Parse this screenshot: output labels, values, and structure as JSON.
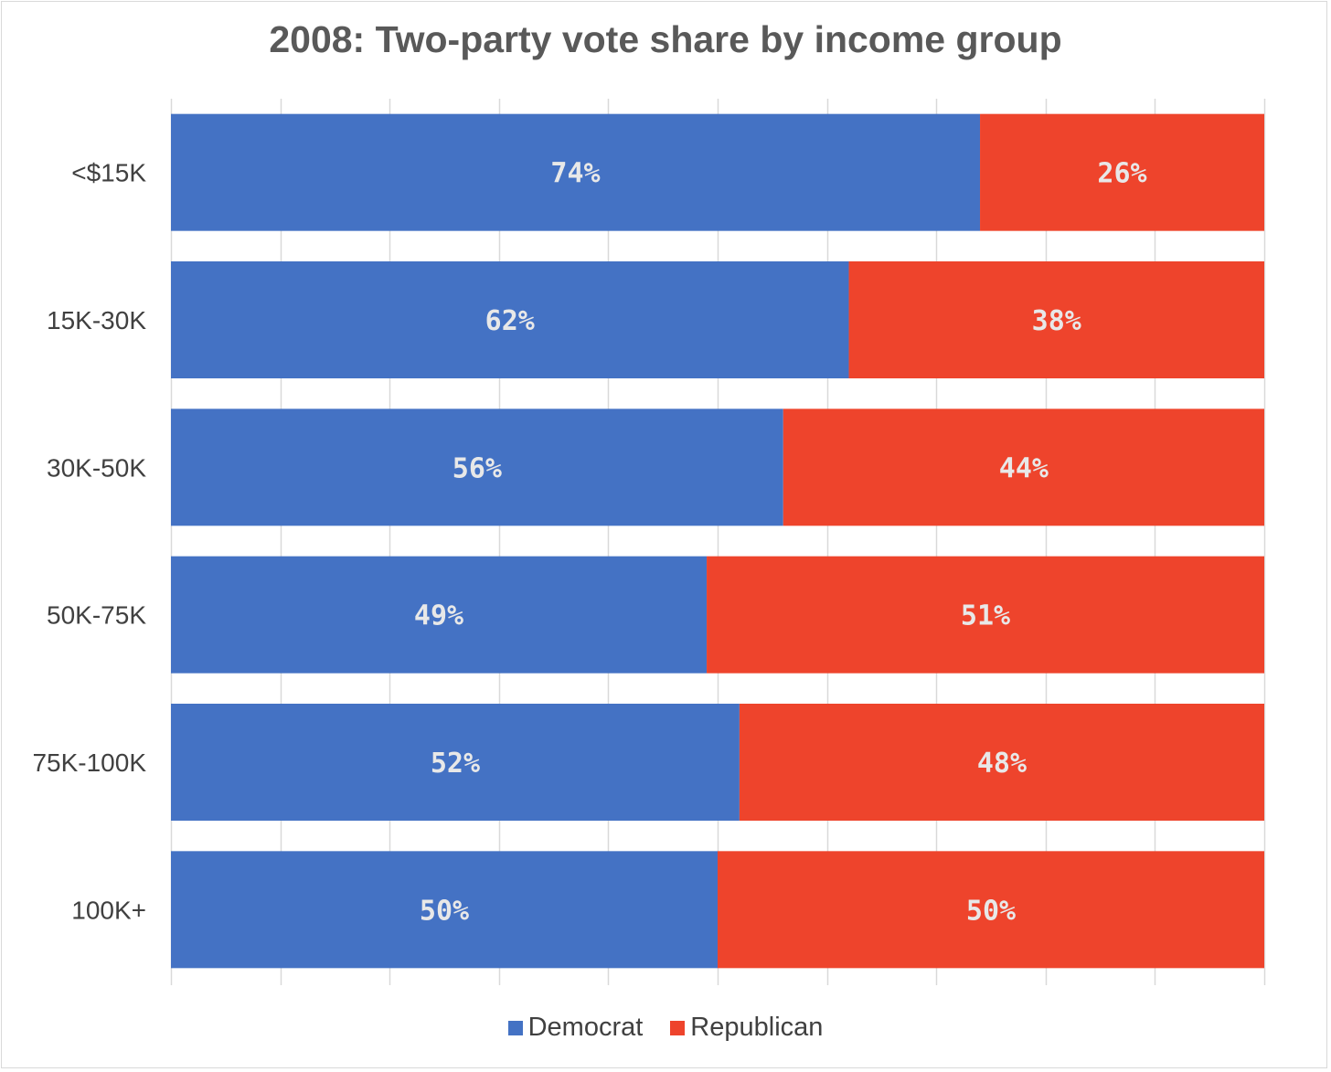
{
  "chart_data": {
    "type": "bar",
    "orientation": "horizontal",
    "stacked": true,
    "title": "2008: Two-party vote share by income group",
    "categories": [
      "<$15K",
      "15K-30K",
      "30K-50K",
      "50K-75K",
      "75K-100K",
      "100K+"
    ],
    "series": [
      {
        "name": "Democrat",
        "color": "#4472c4",
        "values": [
          74,
          62,
          56,
          49,
          52,
          50
        ],
        "labels": [
          "74%",
          "62%",
          "56%",
          "49%",
          "52%",
          "50%"
        ]
      },
      {
        "name": "Republican",
        "color": "#ee442c",
        "values": [
          26,
          38,
          44,
          51,
          48,
          50
        ],
        "labels": [
          "26%",
          "38%",
          "44%",
          "51%",
          "48%",
          "50%"
        ]
      }
    ],
    "xlim": [
      0,
      100
    ],
    "grid": true,
    "legend_position": "bottom"
  }
}
